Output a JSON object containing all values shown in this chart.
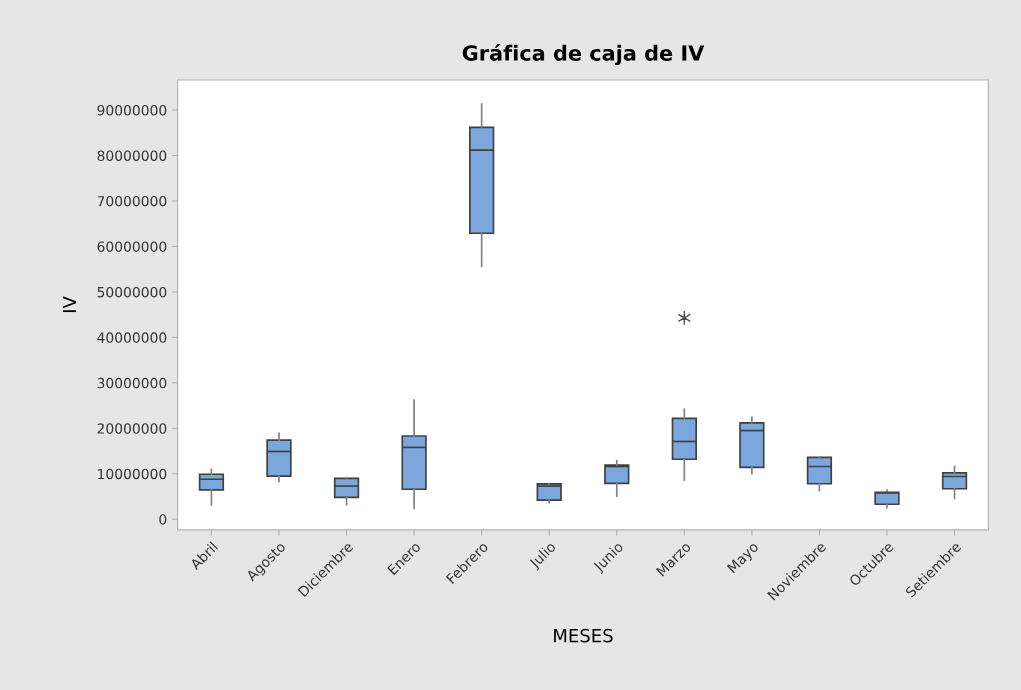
{
  "chart_data": {
    "type": "box",
    "title": "Gráfica de caja de IV",
    "xlabel": "MESES",
    "ylabel": "IV",
    "categories": [
      "Abril",
      "Agosto",
      "Diciembre",
      "Enero",
      "Febrero",
      "Julio",
      "Junio",
      "Marzo",
      "Mayo",
      "Noviembre",
      "Octubre",
      "Setiembre"
    ],
    "color": "#7ba7dc",
    "boxes": [
      {
        "low": 3150000,
        "q1": 6450000,
        "median": 8800000,
        "q3": 9900000,
        "high": 11000000
      },
      {
        "low": 8300000,
        "q1": 9500000,
        "median": 14900000,
        "q3": 17400000,
        "high": 18900000
      },
      {
        "low": 3200000,
        "q1": 4800000,
        "median": 7300000,
        "q3": 9000000,
        "high": 9000000
      },
      {
        "low": 2400000,
        "q1": 6600000,
        "median": 15800000,
        "q3": 18300000,
        "high": 26200000
      },
      {
        "low": 55600000,
        "q1": 62900000,
        "median": 81200000,
        "q3": 86200000,
        "high": 91300000
      },
      {
        "low": 3650000,
        "q1": 4200000,
        "median": 7300000,
        "q3": 7760000,
        "high": 7760000
      },
      {
        "low": 5100000,
        "q1": 7900000,
        "median": 11600000,
        "q3": 11900000,
        "high": 12900000
      },
      {
        "low": 8600000,
        "q1": 13200000,
        "median": 17100000,
        "q3": 22200000,
        "high": 24200000,
        "outliers": [
          44300000
        ]
      },
      {
        "low": 10000000,
        "q1": 11400000,
        "median": 19500000,
        "q3": 21200000,
        "high": 22400000
      },
      {
        "low": 6300000,
        "q1": 7800000,
        "median": 11600000,
        "q3": 13600000,
        "high": 13600000
      },
      {
        "low": 2600000,
        "q1": 3300000,
        "median": 5800000,
        "q3": 5900000,
        "high": 6400000
      },
      {
        "low": 4600000,
        "q1": 6700000,
        "median": 9400000,
        "q3": 10200000,
        "high": 11600000
      }
    ],
    "ylim": [
      -2350000,
      96600000
    ],
    "yticks": [
      0,
      10000000,
      20000000,
      30000000,
      40000000,
      50000000,
      60000000,
      70000000,
      80000000,
      90000000
    ],
    "grid": false,
    "marker": "star"
  }
}
